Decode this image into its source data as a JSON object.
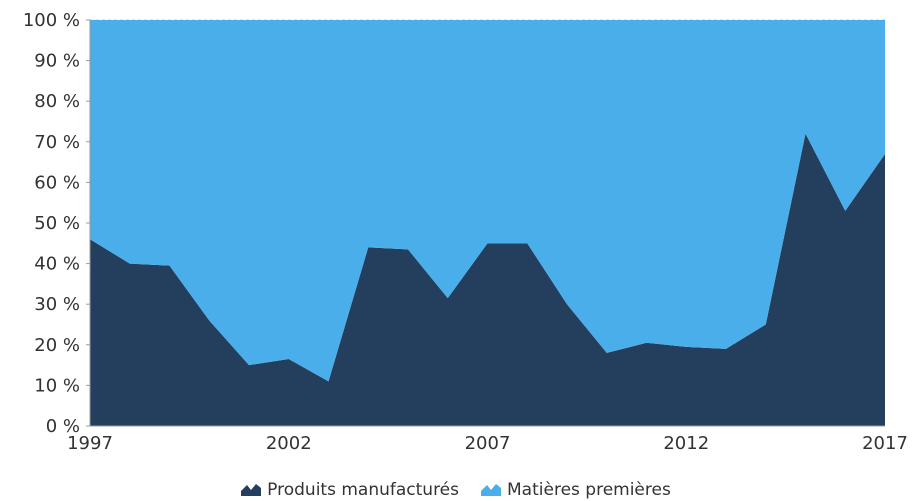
{
  "chart_data": {
    "type": "area",
    "stacked": true,
    "percent": true,
    "x": [
      1997,
      1998,
      1999,
      2000,
      2001,
      2002,
      2003,
      2004,
      2005,
      2006,
      2007,
      2008,
      2009,
      2010,
      2011,
      2012,
      2013,
      2014,
      2015,
      2016,
      2017
    ],
    "series": [
      {
        "name": "Produits manufacturés",
        "color": "#243f5e",
        "values": [
          46,
          40,
          39.5,
          26,
          15,
          16.5,
          11,
          44,
          43.5,
          31.5,
          45,
          45,
          30,
          18,
          20.5,
          19.5,
          19,
          25,
          72,
          53,
          67
        ]
      },
      {
        "name": "Matières premières",
        "color": "#4aaeeb",
        "values": [
          54,
          60,
          60.5,
          74,
          85,
          83.5,
          89,
          56,
          56.5,
          68.5,
          55,
          55,
          70,
          82,
          79.5,
          80.5,
          81,
          75,
          28,
          47,
          33
        ]
      }
    ],
    "x_ticks": [
      "1997",
      "2002",
      "2007",
      "2012",
      "2017"
    ],
    "y_ticks": [
      "0 %",
      "10 %",
      "20 %",
      "30 %",
      "40 %",
      "50 %",
      "60 %",
      "70 %",
      "80 %",
      "90 %",
      "100 %"
    ],
    "ylim": [
      0,
      100
    ],
    "xlim": [
      1997,
      2017
    ],
    "grid": true,
    "legend_position": "bottom-center"
  },
  "legend": {
    "item1": "Produits manufacturés",
    "item2": "Matières premières"
  }
}
